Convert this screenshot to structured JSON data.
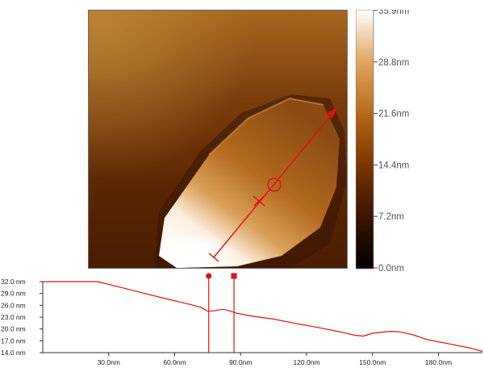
{
  "chart_data": [
    {
      "type": "heatmap",
      "title": "",
      "colorbar": {
        "ticks": [
          "35.9nm",
          "28.8nm",
          "21.6nm",
          "14.4nm",
          "7.2nm",
          "0.0nm"
        ],
        "min": 0.0,
        "max": 35.9,
        "unit": "nm",
        "colors": [
          "#000000",
          "#3a1400",
          "#7a3500",
          "#b86a18",
          "#e0a660",
          "#ffffff"
        ]
      },
      "line_profile_marker": {
        "color": "#e01010",
        "start_label": "",
        "end_label": ""
      }
    },
    {
      "type": "line",
      "xlabel": "",
      "ylabel": "",
      "xlim": [
        0,
        200
      ],
      "ylim": [
        14,
        32
      ],
      "x_ticks": [
        {
          "value": 30,
          "label": "30.0nm"
        },
        {
          "value": 60,
          "label": "60.0nm"
        },
        {
          "value": 90,
          "label": "90.0nm"
        },
        {
          "value": 120,
          "label": "120.0nm"
        },
        {
          "value": 150,
          "label": "150.0nm"
        },
        {
          "value": 180,
          "label": "180.0nm"
        }
      ],
      "y_ticks": [
        {
          "value": 32,
          "label": "32.0 nm"
        },
        {
          "value": 29,
          "label": "29.0 nm"
        },
        {
          "value": 26,
          "label": "26.0 nm"
        },
        {
          "value": 23,
          "label": "23.0 nm"
        },
        {
          "value": 20,
          "label": "20.0 nm"
        },
        {
          "value": 17,
          "label": "17.0 nm"
        },
        {
          "value": 14,
          "label": "14.0 nm"
        }
      ],
      "series": [
        {
          "color": "#e01010",
          "x": [
            0,
            5,
            10,
            20,
            25,
            35,
            45,
            55,
            65,
            72,
            75,
            78,
            82,
            85,
            88,
            92,
            97,
            105,
            115,
            125,
            135,
            142,
            146,
            150,
            158,
            162,
            168,
            175,
            185,
            195,
            200
          ],
          "y": [
            32.0,
            32.0,
            32.0,
            32.0,
            32.0,
            30.6,
            29.2,
            27.8,
            26.5,
            25.5,
            24.5,
            24.6,
            25.0,
            24.6,
            24.0,
            23.6,
            23.1,
            22.5,
            21.4,
            20.4,
            19.3,
            18.4,
            18.2,
            18.9,
            19.4,
            19.3,
            18.6,
            17.3,
            16.2,
            15.1,
            14.3
          ]
        }
      ],
      "cursors": [
        {
          "x": 75.5,
          "marker": "circle"
        },
        {
          "x": 87.0,
          "marker": "square"
        }
      ]
    }
  ]
}
